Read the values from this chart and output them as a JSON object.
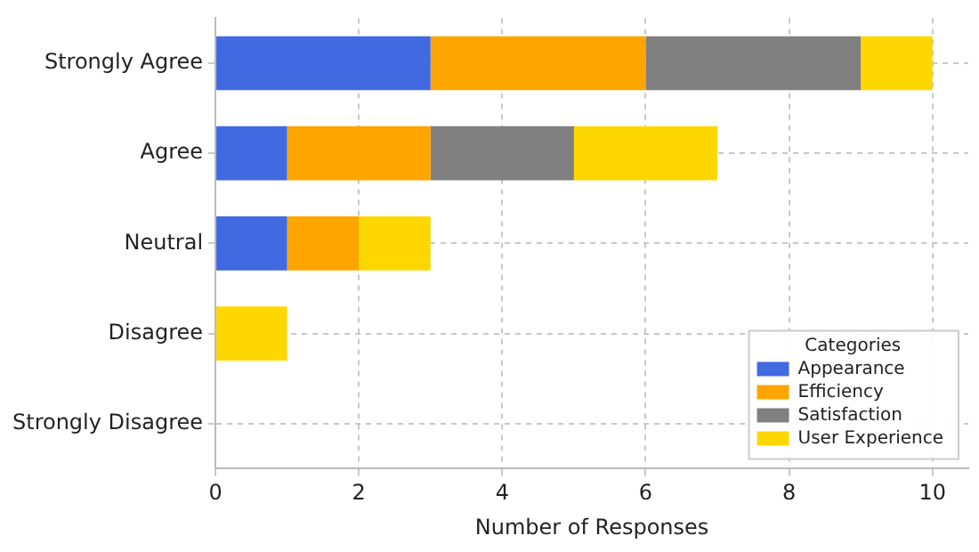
{
  "chart_data": {
    "type": "bar",
    "orientation": "horizontal",
    "stacked": true,
    "xlabel": "Number of Responses",
    "legend_title": "Categories",
    "legend": "bottom right",
    "grid": true,
    "categories": [
      "Strongly Agree",
      "Agree",
      "Neutral",
      "Disagree",
      "Strongly Disagree"
    ],
    "xlim": [
      0,
      10.5
    ],
    "xticks": [
      0,
      2,
      4,
      6,
      8,
      10
    ],
    "series": [
      {
        "name": "Appearance",
        "color": "#4169e1",
        "values": [
          3,
          1,
          1,
          0,
          0
        ]
      },
      {
        "name": "Efficiency",
        "color": "#ffa500",
        "values": [
          3,
          2,
          1,
          0,
          0
        ]
      },
      {
        "name": "Satisfaction",
        "color": "#808080",
        "values": [
          3,
          2,
          0,
          0,
          0
        ]
      },
      {
        "name": "User Experience",
        "color": "#ffd700",
        "values": [
          1,
          2,
          1,
          1,
          0
        ]
      }
    ]
  }
}
